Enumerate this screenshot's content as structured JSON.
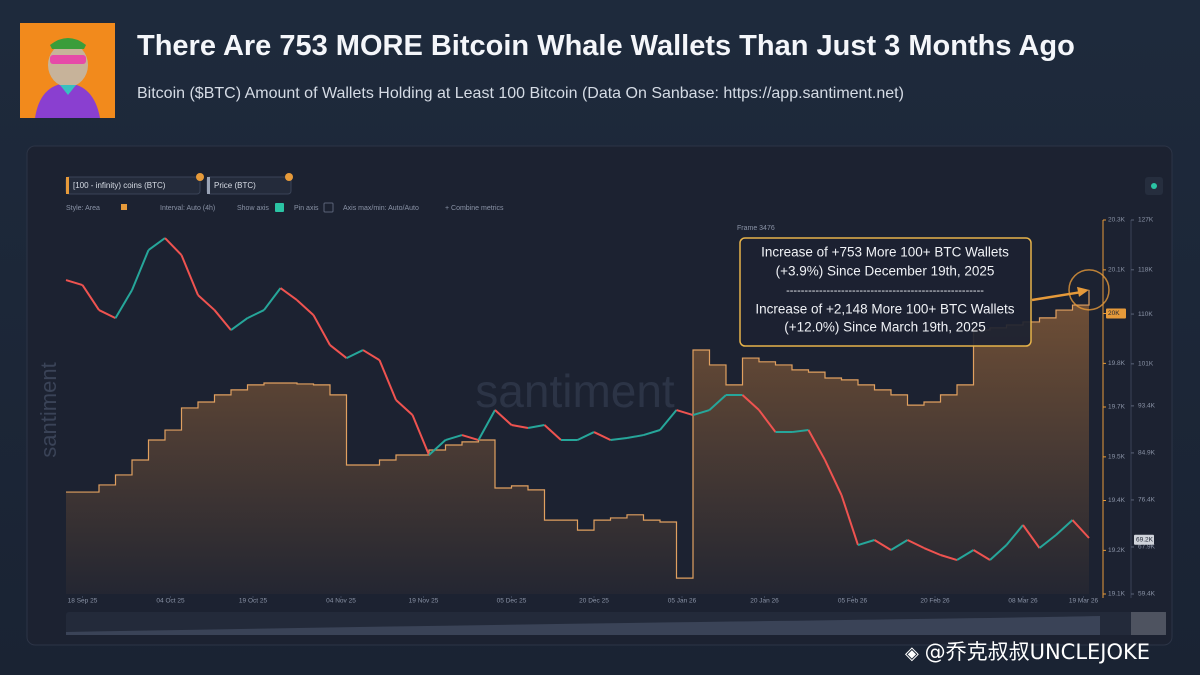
{
  "header": {
    "title": "There Are 753 MORE Bitcoin Whale Wallets Than Just 3 Months Ago",
    "subtitle": "Bitcoin ($BTC) Amount of Wallets Holding at Least 100 Bitcoin (Data On Sanbase: https://app.santiment.net)"
  },
  "toolbar": {
    "metrics": [
      "[100 - infinity) coins (BTC)",
      "Price (BTC)"
    ],
    "options": [
      "Style: Area",
      "Interval: Auto (4h)",
      "Show axis",
      "Pin axis",
      "Axis max/min: Auto/Auto",
      "+ Combine metrics"
    ],
    "frame": "Frame 3476"
  },
  "watermark": "santiment",
  "credit": "@乔克叔叔UNCLEJOKE",
  "chart_data": {
    "type": "area",
    "x": [
      -3,
      0,
      3,
      6,
      9,
      12,
      15,
      18,
      21,
      24,
      27,
      30,
      33,
      36,
      39,
      42,
      45,
      48,
      51,
      54,
      57,
      60,
      63,
      66,
      69,
      72,
      75,
      78,
      81,
      84,
      87,
      90,
      93,
      96,
      99,
      102,
      105,
      108,
      111,
      114,
      117,
      120,
      123,
      126,
      129,
      132,
      135,
      138,
      141,
      144,
      147,
      150,
      153,
      156,
      159,
      162,
      165,
      168,
      171,
      174,
      177,
      180,
      183
    ],
    "xlim": [
      -3,
      185
    ],
    "xticks": [
      {
        "value": 0,
        "label": "18 Sep 25"
      },
      {
        "value": 16,
        "label": "04 Oct 25"
      },
      {
        "value": 31,
        "label": "19 Oct 25"
      },
      {
        "value": 47,
        "label": "04 Nov 25"
      },
      {
        "value": 62,
        "label": "19 Nov 25"
      },
      {
        "value": 78,
        "label": "05 Dec 25"
      },
      {
        "value": 93,
        "label": "20 Dec 25"
      },
      {
        "value": 109,
        "label": "05 Jan 26"
      },
      {
        "value": 124,
        "label": "20 Jan 26"
      },
      {
        "value": 140,
        "label": "05 Feb 26"
      },
      {
        "value": 155,
        "label": "20 Feb 26"
      },
      {
        "value": 171,
        "label": "08 Mar 26"
      },
      {
        "value": 182,
        "label": "19 Mar 26"
      }
    ],
    "ylim": [
      19100,
      20300
    ],
    "yticks": [
      {
        "value": 19100,
        "label": "19.1K"
      },
      {
        "value": 19240,
        "label": "19.2K"
      },
      {
        "value": 19400,
        "label": "19.4K"
      },
      {
        "value": 19540,
        "label": "19.5K"
      },
      {
        "value": 19700,
        "label": "19.7K"
      },
      {
        "value": 19840,
        "label": "19.8K"
      },
      {
        "value": 20000,
        "label": "20K"
      },
      {
        "value": 20140,
        "label": "20.1K"
      },
      {
        "value": 20300,
        "label": "20.3K"
      }
    ],
    "y2lim": [
      59400,
      127000
    ],
    "y2ticks": [
      {
        "value": 59400,
        "label": "59.4K"
      },
      {
        "value": 67900,
        "label": "67.9K"
      },
      {
        "value": 76400,
        "label": "76.4K"
      },
      {
        "value": 84900,
        "label": "84.9K"
      },
      {
        "value": 93400,
        "label": "93.4K"
      },
      {
        "value": 101000,
        "label": "101K"
      },
      {
        "value": 110000,
        "label": "110K"
      },
      {
        "value": 118000,
        "label": "118K"
      },
      {
        "value": 127000,
        "label": "127K"
      }
    ],
    "series": [
      {
        "name": "[100 - infinity) coins (BTC)",
        "type": "area",
        "color": "#e0a060",
        "values": [
          19427,
          19427,
          19450,
          19482,
          19530,
          19594,
          19626,
          19697,
          19716,
          19739,
          19755,
          19771,
          19777,
          19777,
          19774,
          19771,
          19739,
          19514,
          19514,
          19530,
          19546,
          19546,
          19562,
          19578,
          19588,
          19594,
          19440,
          19447,
          19434,
          19337,
          19337,
          19305,
          19337,
          19344,
          19354,
          19337,
          19331,
          19151,
          19883,
          19835,
          19771,
          19857,
          19845,
          19835,
          19819,
          19812,
          19793,
          19787,
          19771,
          19755,
          19739,
          19706,
          19716,
          19739,
          19771,
          19947,
          19954,
          19963,
          19973,
          19986,
          20011,
          20027,
          20076
        ],
        "last_label": {
          "value": 20000,
          "label": "20K"
        }
      },
      {
        "name": "Price (BTC)",
        "type": "line",
        "axis": "y2",
        "color": "#26a69a",
        "down_color": "#ef5350",
        "values": [
          116140,
          115240,
          110720,
          109270,
          114330,
          121560,
          123730,
          120660,
          113430,
          110720,
          107100,
          109270,
          110720,
          114690,
          112520,
          109810,
          104390,
          102040,
          103490,
          101680,
          94460,
          91750,
          84520,
          87230,
          88130,
          87230,
          92650,
          89940,
          89400,
          89940,
          87230,
          87230,
          88670,
          87230,
          87590,
          88130,
          89040,
          92650,
          91750,
          92650,
          95360,
          95360,
          92650,
          88670,
          88670,
          89040,
          83610,
          77290,
          68250,
          69160,
          67350,
          69160,
          67710,
          66450,
          65540,
          67350,
          65540,
          68250,
          71870,
          67710,
          70060,
          72770,
          69520
        ],
        "last_label": {
          "value": 69200,
          "label": "69.2K"
        }
      }
    ],
    "annotation": {
      "lines": [
        "Increase of +753 More 100+ BTC Wallets",
        "(+3.9%) Since December 19th, 2025",
        "------------------------------------------------------",
        "Increase of +2,148 More 100+ BTC Wallets",
        "(+12.0%) Since March 19th, 2025"
      ]
    }
  }
}
